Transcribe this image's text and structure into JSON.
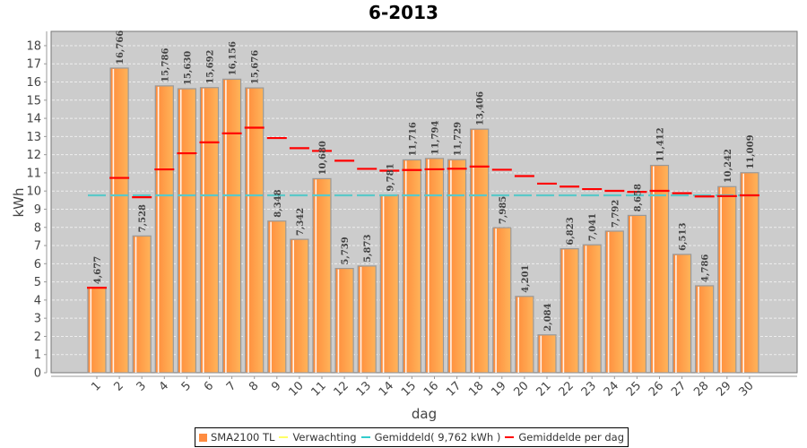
{
  "chart_data": {
    "type": "bar",
    "title": "6-2013",
    "xlabel": "dag",
    "ylabel": "kWh",
    "ylim": [
      0,
      18.7
    ],
    "yticks": [
      0,
      1,
      2,
      3,
      4,
      5,
      6,
      7,
      8,
      9,
      10,
      11,
      12,
      13,
      14,
      15,
      16,
      17,
      18
    ],
    "grid": true,
    "legend_position": "bottom",
    "categories": [
      "1",
      "2",
      "3",
      "4",
      "5",
      "6",
      "7",
      "8",
      "9",
      "10",
      "11",
      "12",
      "13",
      "14",
      "15",
      "16",
      "17",
      "18",
      "19",
      "20",
      "21",
      "22",
      "23",
      "24",
      "25",
      "26",
      "27",
      "28",
      "29",
      "30"
    ],
    "series": [
      {
        "name": "SMA2100 TL",
        "type": "bar",
        "color": "#FF9340",
        "values": [
          4.677,
          16.766,
          7.528,
          15.786,
          15.63,
          15.692,
          16.156,
          15.676,
          8.348,
          7.342,
          10.68,
          5.739,
          5.873,
          9.781,
          11.716,
          11.794,
          11.729,
          13.406,
          7.985,
          4.201,
          2.084,
          6.823,
          7.041,
          7.792,
          8.658,
          11.412,
          6.513,
          4.786,
          10.242,
          11.009
        ],
        "labels": [
          "4,677",
          "16,766",
          "7,528",
          "15,786",
          "15,630",
          "15,692",
          "16,156",
          "15,676",
          "8,348",
          "7,342",
          "10,680",
          "5,739",
          "5,873",
          "9,781",
          "11,716",
          "11,794",
          "11,729",
          "13,406",
          "7,985",
          "4,201",
          "2,084",
          "6,823",
          "7,041",
          "7,792",
          "8,658",
          "11,412",
          "6,513",
          "4,786",
          "10,242",
          "11,009"
        ]
      },
      {
        "name": "Verwachting",
        "type": "line",
        "color": "#FFFF66",
        "values": []
      },
      {
        "name": "Gemiddeld( 9,762 kWh )",
        "type": "hline",
        "color": "#5BC8C8",
        "value": 9.762
      },
      {
        "name": "Gemiddelde per dag",
        "type": "marker",
        "color": "#FF0000",
        "values": [
          4.677,
          10.722,
          9.657,
          11.189,
          12.077,
          12.679,
          13.176,
          13.488,
          12.917,
          12.359,
          12.206,
          11.667,
          11.221,
          11.118,
          11.158,
          11.197,
          11.228,
          11.349,
          11.172,
          10.824,
          10.408,
          10.245,
          10.106,
          10.009,
          9.955,
          10.011,
          9.882,
          9.7,
          9.719,
          9.762
        ]
      }
    ]
  },
  "legend": {
    "items": [
      {
        "label": "SMA2100 TL",
        "color": "#FF8C40",
        "kind": "box"
      },
      {
        "label": "Verwachting",
        "color": "#FFFF66",
        "kind": "line"
      },
      {
        "label": "Gemiddeld( 9,762 kWh )",
        "color": "#33CCCC",
        "kind": "line"
      },
      {
        "label": "Gemiddelde per dag",
        "color": "#FF0000",
        "kind": "line"
      }
    ]
  }
}
